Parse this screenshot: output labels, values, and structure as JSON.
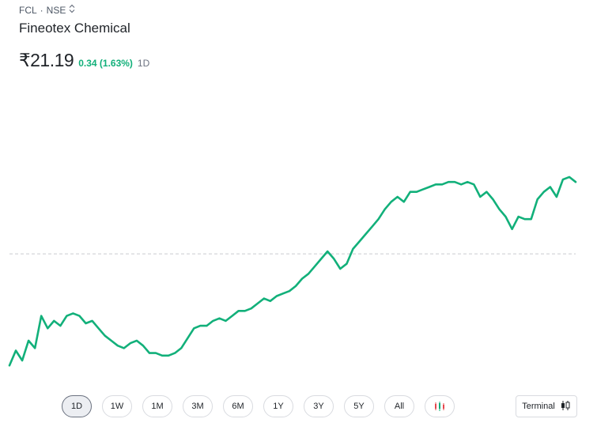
{
  "header": {
    "symbol": "FCL",
    "separator": "·",
    "exchange": "NSE",
    "switch_icon": "up-down-chevron-icon",
    "company_name": "Fineotex Chemical"
  },
  "quote": {
    "price": "₹21.19",
    "change": "0.34 (1.63%)",
    "period": "1D",
    "change_color": "#12b07a"
  },
  "chart_data": {
    "type": "line",
    "line_color": "#12b07a",
    "baseline_color": "#c9cbd0",
    "baseline_style": "dashed",
    "grid": false,
    "y_range": [
      20.35,
      21.3
    ],
    "baseline": 20.85,
    "values": [
      20.4,
      20.46,
      20.42,
      20.5,
      20.47,
      20.6,
      20.55,
      20.58,
      20.56,
      20.6,
      20.61,
      20.6,
      20.57,
      20.58,
      20.55,
      20.52,
      20.5,
      20.48,
      20.47,
      20.49,
      20.5,
      20.48,
      20.45,
      20.45,
      20.44,
      20.44,
      20.45,
      20.47,
      20.51,
      20.55,
      20.56,
      20.56,
      20.58,
      20.59,
      20.58,
      20.6,
      20.62,
      20.62,
      20.63,
      20.65,
      20.67,
      20.66,
      20.68,
      20.69,
      20.7,
      20.72,
      20.75,
      20.77,
      20.8,
      20.83,
      20.86,
      20.83,
      20.79,
      20.81,
      20.87,
      20.9,
      20.93,
      20.96,
      20.99,
      21.03,
      21.06,
      21.08,
      21.06,
      21.1,
      21.1,
      21.11,
      21.12,
      21.13,
      21.13,
      21.14,
      21.14,
      21.13,
      21.14,
      21.13,
      21.08,
      21.1,
      21.07,
      21.03,
      21.0,
      20.95,
      21.0,
      20.99,
      20.99,
      21.07,
      21.1,
      21.12,
      21.08,
      21.15,
      21.16,
      21.14
    ],
    "unit_label": ""
  },
  "ranges": [
    "1D",
    "1W",
    "1M",
    "3M",
    "6M",
    "1Y",
    "3Y",
    "5Y",
    "All"
  ],
  "active_range": "1D",
  "candle_icon": "candlestick-icon",
  "terminal": {
    "label": "Terminal",
    "icon": "candlestick-icon"
  }
}
